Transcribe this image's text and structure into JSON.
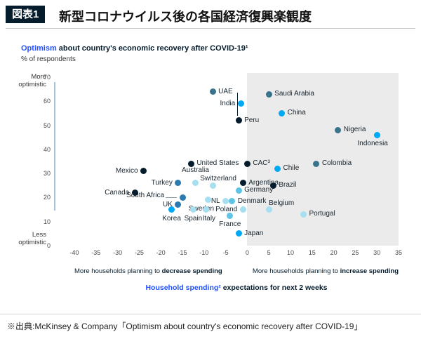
{
  "header": {
    "tag": "図表1",
    "title": "新型コロナウイルス後の各国経済復興楽観度"
  },
  "chart": {
    "title_accent": "Optimism",
    "title_rest": " about country's economic recovery after COVID-19¹",
    "subtitle": "% of respondents",
    "y_axis_top": "More optimistic",
    "y_axis_bottom": "Less optimistic",
    "x_annotation_left_normal": "More households planning to ",
    "x_annotation_left_bold": "decrease spending",
    "x_annotation_right_normal": "More households planning to ",
    "x_annotation_right_bold": "increase spending",
    "x_title_accent": "Household spending²",
    "x_title_rest": " expectations for next 2 weeks"
  },
  "chart_data": {
    "type": "scatter",
    "title": "Optimism about country's economic recovery after COVID-19",
    "xlabel": "Household spending expectations for next 2 weeks",
    "ylabel": "% of respondents",
    "xlim": [
      -40,
      35
    ],
    "ylim": [
      0,
      70
    ],
    "x_ticks": [
      -40,
      -35,
      -30,
      -25,
      -20,
      -15,
      -10,
      -5,
      0,
      5,
      10,
      15,
      20,
      25,
      30,
      35
    ],
    "y_ticks": [
      0,
      10,
      20,
      30,
      40,
      50,
      60,
      70
    ],
    "grid": false,
    "legend": "none",
    "shaded_region": {
      "x_from": 0,
      "x_to": 35,
      "color": "#EBEBEB"
    },
    "annotation_line": {
      "x": -2.3,
      "y_from": 54,
      "y_to": 63.5
    },
    "colors": {
      "navy": "#051C2C",
      "teal": "#38758C",
      "blue": "#2B7BB0",
      "cyan": "#00A9F4",
      "sky": "#5FC3E6",
      "light": "#A5DFF0"
    },
    "points": [
      {
        "label": "UAE",
        "x": -8,
        "y": 64,
        "color": "teal",
        "label_pos": "right"
      },
      {
        "label": "Saudi Arabia",
        "x": 5,
        "y": 63,
        "color": "teal",
        "label_pos": "right"
      },
      {
        "label": "India",
        "x": -1.5,
        "y": 59,
        "color": "cyan",
        "label_pos": "left"
      },
      {
        "label": "China",
        "x": 8,
        "y": 55,
        "color": "cyan",
        "label_pos": "right"
      },
      {
        "label": "Peru",
        "x": -2,
        "y": 52,
        "color": "navy",
        "label_pos": "right"
      },
      {
        "label": "Nigeria",
        "x": 21,
        "y": 48,
        "color": "teal",
        "label_pos": "right"
      },
      {
        "label": "Indonesia",
        "x": 30,
        "y": 46,
        "color": "cyan",
        "label_pos": "below",
        "label_dx": -6
      },
      {
        "label": "United States",
        "x": -13,
        "y": 34,
        "color": "navy",
        "label_pos": "right"
      },
      {
        "label": "CAC³",
        "x": 0,
        "y": 34,
        "color": "navy",
        "label_pos": "right"
      },
      {
        "label": "Chile",
        "x": 7,
        "y": 32,
        "color": "cyan",
        "label_pos": "right"
      },
      {
        "label": "Colombia",
        "x": 16,
        "y": 34,
        "color": "teal",
        "label_pos": "right"
      },
      {
        "label": "Mexico",
        "x": -24,
        "y": 31,
        "color": "navy",
        "label_pos": "left"
      },
      {
        "label": "Turkey",
        "x": -16,
        "y": 26,
        "color": "blue",
        "label_pos": "left"
      },
      {
        "label": "Australia",
        "x": -12,
        "y": 26,
        "color": "light",
        "label_pos": "above",
        "label_dy": -9
      },
      {
        "label": "Switzerland",
        "x": -8,
        "y": 25,
        "color": "light",
        "label_pos": "above",
        "label_dx": 8
      },
      {
        "label": "Argentina",
        "x": -1,
        "y": 26,
        "color": "navy",
        "label_pos": "right"
      },
      {
        "label": "Brazil",
        "x": 6,
        "y": 25,
        "color": "navy",
        "label_pos": "right"
      },
      {
        "label": "Canada",
        "x": -26,
        "y": 22,
        "color": "navy",
        "label_pos": "left"
      },
      {
        "label": "South Africa",
        "x": -15,
        "y": 20,
        "color": "blue",
        "label_pos": "left",
        "leader": true,
        "label_dy": -2
      },
      {
        "label": "Sweden",
        "x": -9,
        "y": 19,
        "color": "light",
        "label_pos": "below",
        "label_dx": -10
      },
      {
        "label": "Germany",
        "x": -2,
        "y": 23,
        "color": "sky",
        "label_pos": "right"
      },
      {
        "label": "NL",
        "x": -5,
        "y": 18.5,
        "color": "light",
        "label_pos": "left"
      },
      {
        "label": "Denmark",
        "x": -3.5,
        "y": 18.5,
        "color": "sky",
        "label_pos": "right"
      },
      {
        "label": "UK",
        "x": -16,
        "y": 17,
        "color": "blue",
        "label_pos": "left"
      },
      {
        "label": "Korea",
        "x": -17.5,
        "y": 15,
        "color": "cyan",
        "label_pos": "below"
      },
      {
        "label": "Spain",
        "x": -12.5,
        "y": 15,
        "color": "light",
        "label_pos": "below"
      },
      {
        "label": "Italy",
        "x": -9.5,
        "y": 15,
        "color": "light",
        "label_pos": "below",
        "label_dx": 4
      },
      {
        "label": "Poland",
        "x": -1,
        "y": 15,
        "color": "light",
        "label_pos": "left"
      },
      {
        "label": "Belgium",
        "x": 5,
        "y": 15,
        "color": "light",
        "label_pos": "above",
        "label_dx": 18
      },
      {
        "label": "Portugal",
        "x": 13,
        "y": 13,
        "color": "light",
        "label_pos": "right"
      },
      {
        "label": "France",
        "x": -4,
        "y": 12.5,
        "color": "sky",
        "label_pos": "below"
      },
      {
        "label": "Japan",
        "x": -2,
        "y": 5,
        "color": "cyan",
        "label_pos": "right"
      }
    ]
  },
  "footer": {
    "source": "※出典:McKinsey & Company「Optimism about country's economic recovery after COVID-19」"
  }
}
